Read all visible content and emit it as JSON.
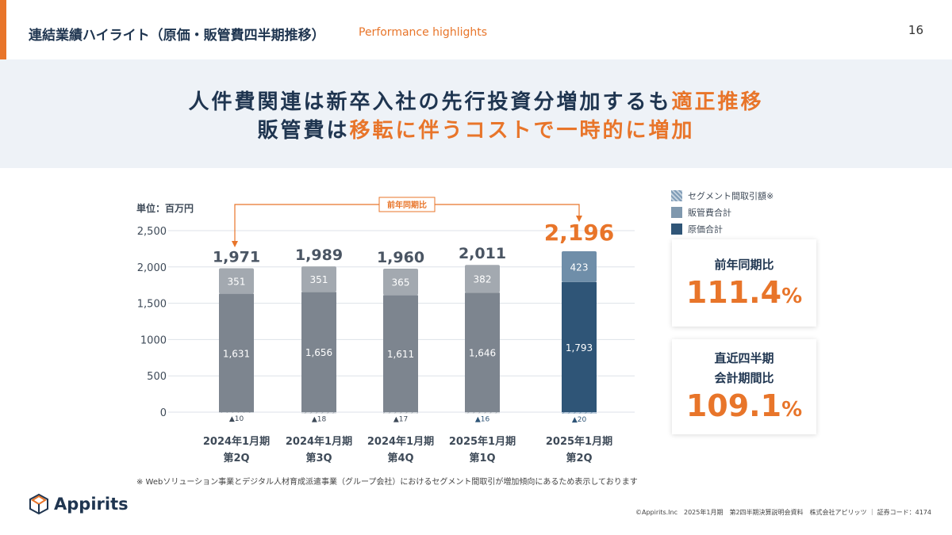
{
  "header": {
    "title": "連結業績ハイライト（原価・販管費四半期推移）",
    "subtitle": "Performance highlights",
    "page": "16"
  },
  "banner": {
    "line1_a": "人件費関連は新卒入社の先行投資分増加するも",
    "line1_b": "適正推移",
    "line2_a": "販管費は",
    "line2_b": "移転に伴うコストで一時的に増加"
  },
  "chart_data": {
    "type": "bar",
    "stacked": true,
    "unit": "単位：百万円",
    "categories": [
      [
        "2024年1月期",
        "第2Q"
      ],
      [
        "2024年1月期",
        "第3Q"
      ],
      [
        "2024年1月期",
        "第4Q"
      ],
      [
        "2025年1月期",
        "第1Q"
      ],
      [
        "2025年1月期",
        "第2Q"
      ]
    ],
    "series": [
      {
        "name": "原価合計",
        "values": [
          1631,
          1656,
          1611,
          1646,
          1793
        ]
      },
      {
        "name": "販管費合計",
        "values": [
          351,
          351,
          365,
          382,
          423
        ]
      },
      {
        "name": "セグメント間取引額※",
        "values": [
          -10,
          -18,
          -17,
          -16,
          -20
        ],
        "labels": [
          "▲10",
          "▲18",
          "▲17",
          "▲16",
          "▲20"
        ]
      }
    ],
    "totals": [
      "1,971",
      "1,989",
      "1,960",
      "2,011",
      "2,196"
    ],
    "seg_labels": {
      "cost": [
        "1,631",
        "1,656",
        "1,611",
        "1,646",
        "1,793"
      ],
      "sga": [
        "351",
        "351",
        "365",
        "382",
        "423"
      ]
    },
    "yticks": [
      "0",
      "500",
      "1000",
      "1,500",
      "2,000",
      "2,500"
    ],
    "ylim": [
      0,
      2500
    ],
    "annotation": "前年同期比",
    "colors": {
      "cost": "#7d858f",
      "sga": "#a3a9b0",
      "cost_hl": "#2f5577",
      "sga_hl": "#6f8ea9",
      "accent": "#e8752a"
    }
  },
  "legend": [
    {
      "label": "セグメント間取引額※"
    },
    {
      "label": "販管費合計"
    },
    {
      "label": "原価合計"
    }
  ],
  "cards": [
    {
      "label": "前年同期比",
      "value": "111.4",
      "unit": "%"
    },
    {
      "label1": "直近四半期",
      "label2": "会計期間比",
      "value": "109.1",
      "unit": "%"
    }
  ],
  "note": "※ Webソリューション事業とデジタル人材育成派遣事業（グループ会社）におけるセグメント間取引が増加傾向にあるため表示しております",
  "logo": "Appirits",
  "footer": "©Appirits.Inc　2025年1月期　第2四半期決算説明会資料　株式会社アピリッツ ｜ 証券コード：4174"
}
